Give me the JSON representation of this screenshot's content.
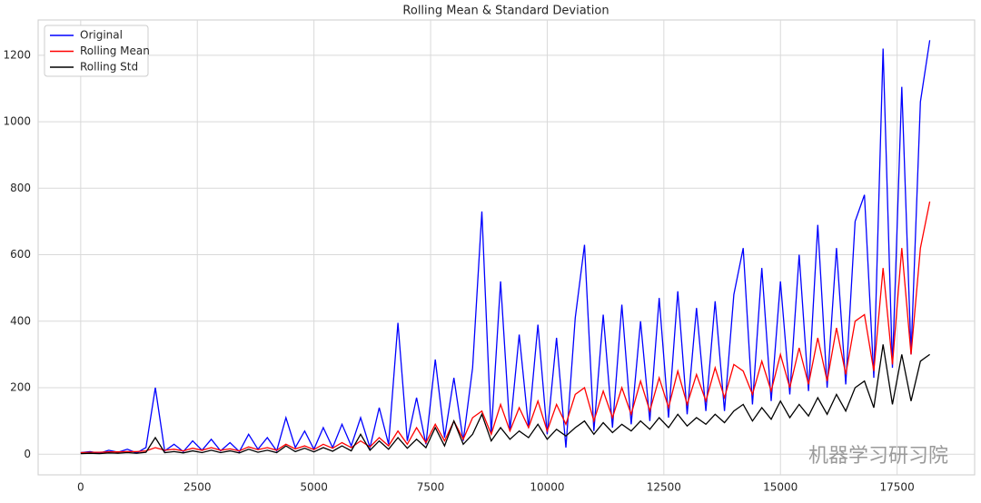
{
  "chart_data": {
    "type": "line",
    "title": "Rolling Mean & Standard Deviation",
    "watermark": "机器学习研习院",
    "x": [
      0,
      200,
      400,
      600,
      800,
      1000,
      1200,
      1400,
      1600,
      1800,
      2000,
      2200,
      2400,
      2600,
      2800,
      3000,
      3200,
      3400,
      3600,
      3800,
      4000,
      4200,
      4400,
      4600,
      4800,
      5000,
      5200,
      5400,
      5600,
      5800,
      6000,
      6200,
      6400,
      6600,
      6800,
      7000,
      7200,
      7400,
      7600,
      7800,
      8000,
      8200,
      8400,
      8600,
      8800,
      9000,
      9200,
      9400,
      9600,
      9800,
      10000,
      10200,
      10400,
      10600,
      10800,
      11000,
      11200,
      11400,
      11600,
      11800,
      12000,
      12200,
      12400,
      12600,
      12800,
      13000,
      13200,
      13400,
      13600,
      13800,
      14000,
      14200,
      14400,
      14600,
      14800,
      15000,
      15200,
      15400,
      15600,
      15800,
      16000,
      16200,
      16400,
      16600,
      16800,
      17000,
      17200,
      17400,
      17600,
      17800,
      18000,
      18200
    ],
    "series": [
      {
        "name": "Original",
        "color": "#0000ff",
        "values": [
          5,
          8,
          3,
          12,
          6,
          15,
          4,
          20,
          200,
          10,
          30,
          8,
          40,
          12,
          45,
          10,
          35,
          8,
          60,
          15,
          50,
          10,
          110,
          20,
          70,
          15,
          80,
          20,
          90,
          25,
          110,
          20,
          140,
          30,
          395,
          40,
          170,
          30,
          285,
          50,
          230,
          40,
          260,
          730,
          60,
          520,
          70,
          360,
          80,
          390,
          60,
          350,
          20,
          410,
          630,
          70,
          420,
          80,
          450,
          90,
          400,
          100,
          470,
          110,
          490,
          120,
          440,
          130,
          460,
          130,
          480,
          620,
          150,
          560,
          160,
          520,
          180,
          600,
          190,
          690,
          200,
          620,
          210,
          700,
          780,
          230,
          1220,
          260,
          1105,
          300,
          1060,
          1245
        ]
      },
      {
        "name": "Rolling Mean",
        "color": "#ff0000",
        "values": [
          5,
          6,
          6,
          7,
          7,
          8,
          8,
          10,
          20,
          12,
          15,
          10,
          18,
          12,
          20,
          12,
          16,
          10,
          22,
          14,
          20,
          12,
          30,
          16,
          25,
          14,
          30,
          18,
          35,
          20,
          40,
          22,
          50,
          25,
          70,
          30,
          80,
          35,
          90,
          40,
          100,
          45,
          110,
          130,
          60,
          150,
          70,
          140,
          80,
          160,
          70,
          150,
          90,
          180,
          200,
          100,
          190,
          110,
          200,
          120,
          220,
          130,
          230,
          140,
          250,
          150,
          240,
          160,
          260,
          170,
          270,
          250,
          180,
          280,
          190,
          300,
          200,
          320,
          210,
          350,
          220,
          380,
          240,
          400,
          420,
          250,
          560,
          270,
          620,
          300,
          620,
          760
        ]
      },
      {
        "name": "Rolling Std",
        "color": "#000000",
        "values": [
          2,
          3,
          2,
          4,
          3,
          5,
          3,
          6,
          50,
          5,
          8,
          4,
          10,
          5,
          12,
          5,
          10,
          4,
          15,
          6,
          12,
          5,
          25,
          8,
          18,
          7,
          20,
          9,
          25,
          10,
          60,
          12,
          40,
          15,
          50,
          18,
          45,
          20,
          80,
          25,
          100,
          30,
          60,
          120,
          40,
          80,
          45,
          70,
          50,
          90,
          45,
          75,
          55,
          80,
          100,
          60,
          95,
          65,
          90,
          70,
          100,
          75,
          110,
          80,
          120,
          85,
          110,
          90,
          120,
          95,
          130,
          150,
          100,
          140,
          105,
          160,
          110,
          150,
          115,
          170,
          120,
          180,
          130,
          200,
          220,
          140,
          330,
          150,
          300,
          160,
          280,
          300
        ]
      }
    ],
    "xlim": [
      -912,
      19162
    ],
    "ylim": [
      -62,
      1306
    ],
    "xticks": [
      0,
      2500,
      5000,
      7500,
      10000,
      12500,
      15000,
      17500
    ],
    "yticks": [
      0,
      200,
      400,
      600,
      800,
      1000,
      1200
    ],
    "grid": true,
    "legend": "upper-left"
  }
}
